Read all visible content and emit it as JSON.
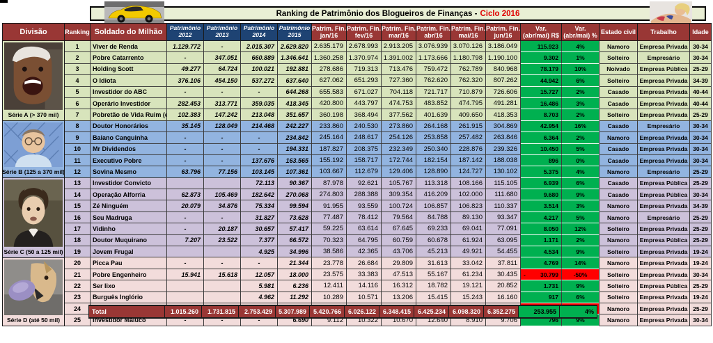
{
  "banner": {
    "title_prefix": "Ranking de Patrimônio dos Blogueiros de Finanças -",
    "title_highlight": "Ciclo 2016"
  },
  "colors": {
    "header_red": "#993735",
    "header_blue": "#1e4373",
    "serie_a": "#d8e4bc",
    "serie_b": "#92b4e0",
    "serie_c": "#ccc1da",
    "serie_d": "#f2dcdb",
    "var_positive": "#00b050",
    "var_negative": "#ff0000",
    "banner_bg": "#e9efd5",
    "highlight_text": "#e00000"
  },
  "header": {
    "divisao": "Divisão",
    "ranking": "Ranking",
    "soldado": "Soldado do Milhão",
    "patrimonio_label": "Patrimônio",
    "patrimonio_years": [
      "2012",
      "2013",
      "2014",
      "2015"
    ],
    "patrim_fin_label": "Patrim. Fin.",
    "months": [
      "jan/16",
      "fev/16",
      "mar/16",
      "abr/16",
      "mai/16",
      "jun/16"
    ],
    "var_rs": [
      "Var.",
      "(abr/mai) R$"
    ],
    "var_pct": [
      "Var.",
      "(abr/mai) %"
    ],
    "estado": "Estado civil",
    "trabalho": "Trabalho",
    "idade": "Idade"
  },
  "series": [
    {
      "id": "A",
      "label": "Série A (> 370 mil)",
      "rows": 7
    },
    {
      "id": "B",
      "label": "Série B (125 a 370 mil)",
      "rows": 5
    },
    {
      "id": "C",
      "label": "Série C (50 a 125 mil)",
      "rows": 7
    },
    {
      "id": "D",
      "label": "Série D (até 50 mil)",
      "rows": 6
    }
  ],
  "rows": [
    {
      "rank": "1",
      "name": "Viver de Renda",
      "serie": "A",
      "hist": [
        "1.129.772",
        "-",
        "2.015.307",
        "2.629.820"
      ],
      "months": [
        "2.635.179",
        "2.678.993",
        "2.913.205",
        "3.076.939",
        "3.070.126",
        "3.186.049"
      ],
      "var_rs": "115.923",
      "var_pct": "4%",
      "estado": "Namoro",
      "trabalho": "Empresa Privada",
      "idade": "30-34"
    },
    {
      "rank": "2",
      "name": "Pobre Catarrento",
      "serie": "A",
      "hist": [
        "-",
        "347.051",
        "660.889",
        "1.346.641"
      ],
      "months": [
        "1.360.258",
        "1.370.974",
        "1.391.002",
        "1.173.666",
        "1.180.798",
        "1.190.100"
      ],
      "var_rs": "9.302",
      "var_pct": "1%",
      "estado": "Solteiro",
      "trabalho": "Empresário",
      "idade": "30-34"
    },
    {
      "rank": "3",
      "name": "Holding Scott",
      "serie": "A",
      "hist": [
        "49.277",
        "64.724",
        "100.021",
        "192.881"
      ],
      "months": [
        "278.686",
        "719.313",
        "713.476",
        "759.472",
        "762.789",
        "840.968"
      ],
      "var_rs": "78.179",
      "var_pct": "10%",
      "estado": "Noivado",
      "trabalho": "Empresa Pública",
      "idade": "25-29"
    },
    {
      "rank": "4",
      "name": "O Idiota",
      "serie": "A",
      "hist": [
        "376.106",
        "454.150",
        "537.272",
        "637.640"
      ],
      "months": [
        "627.062",
        "651.293",
        "727.360",
        "762.620",
        "762.320",
        "807.262"
      ],
      "var_rs": "44.942",
      "var_pct": "6%",
      "estado": "Solteiro",
      "trabalho": "Empresa Privada",
      "idade": "34-39"
    },
    {
      "rank": "5",
      "name": "Investidor do ABC",
      "serie": "A",
      "hist": [
        "-",
        "-",
        "-",
        "644.268"
      ],
      "months": [
        "655.583",
        "671.027",
        "704.118",
        "721.717",
        "710.879",
        "726.606"
      ],
      "var_rs": "15.727",
      "var_pct": "2%",
      "estado": "Casado",
      "trabalho": "Empresa Privada",
      "idade": "40-44"
    },
    {
      "rank": "6",
      "name": "Operário Investidor",
      "serie": "A",
      "hist": [
        "282.453",
        "313.771",
        "359.035",
        "418.345"
      ],
      "months": [
        "420.800",
        "443.797",
        "474.753",
        "483.852",
        "474.795",
        "491.281"
      ],
      "var_rs": "16.486",
      "var_pct": "3%",
      "estado": "Casado",
      "trabalho": "Empresa Privada",
      "idade": "40-44"
    },
    {
      "rank": "7",
      "name": "Pobretão de Vida Ruim (eu)",
      "serie": "A",
      "hist": [
        "102.383",
        "147.242",
        "213.048",
        "351.657"
      ],
      "months": [
        "360.198",
        "368.494",
        "377.562",
        "401.639",
        "409.650",
        "418.353"
      ],
      "var_rs": "8.703",
      "var_pct": "2%",
      "estado": "Solteiro",
      "trabalho": "Empresa Privada",
      "idade": "25-29"
    },
    {
      "rank": "8",
      "name": "Doutor Honorários",
      "serie": "B",
      "hist": [
        "35.145",
        "128.049",
        "214.468",
        "242.227"
      ],
      "months": [
        "233.860",
        "240.530",
        "273.860",
        "264.168",
        "261.915",
        "304.869"
      ],
      "var_rs": "42.954",
      "var_pct": "16%",
      "estado": "Casado",
      "trabalho": "Empresário",
      "idade": "30-34"
    },
    {
      "rank": "9",
      "name": "Baiano Canguinha",
      "serie": "B",
      "hist": [
        "-",
        "-",
        "-",
        "234.842"
      ],
      "months": [
        "245.164",
        "248.617",
        "254.126",
        "253.858",
        "257.482",
        "263.846"
      ],
      "var_rs": "6.364",
      "var_pct": "2%",
      "estado": "Namoro",
      "trabalho": "Empresa Privada",
      "idade": "30-34"
    },
    {
      "rank": "10",
      "name": "Mr Dividendos",
      "serie": "B",
      "hist": [
        "-",
        "-",
        "-",
        "194.331"
      ],
      "months": [
        "187.827",
        "208.375",
        "232.349",
        "250.340",
        "228.876",
        "239.326"
      ],
      "var_rs": "10.450",
      "var_pct": "5%",
      "estado": "Casado",
      "trabalho": "Empresa Privada",
      "idade": "30-34"
    },
    {
      "rank": "11",
      "name": "Executivo Pobre",
      "serie": "B",
      "hist": [
        "-",
        "-",
        "137.676",
        "163.565"
      ],
      "months": [
        "155.192",
        "158.717",
        "172.744",
        "182.154",
        "187.142",
        "188.038"
      ],
      "var_rs": "896",
      "var_pct": "0%",
      "estado": "Casado",
      "trabalho": "Empresa Privada",
      "idade": "30-34"
    },
    {
      "rank": "12",
      "name": "Sovina Mesmo",
      "serie": "B",
      "hist": [
        "63.796",
        "77.156",
        "103.145",
        "107.361"
      ],
      "months": [
        "103.667",
        "112.679",
        "129.406",
        "128.890",
        "124.727",
        "130.102"
      ],
      "var_rs": "5.375",
      "var_pct": "4%",
      "estado": "Namoro",
      "trabalho": "Empresário",
      "idade": "25-29"
    },
    {
      "rank": "13",
      "name": "Investidor Convicto",
      "serie": "C",
      "hist": [
        "",
        "",
        "72.113",
        "90.367"
      ],
      "months": [
        "87.978",
        "92.621",
        "105.767",
        "113.318",
        "108.166",
        "115.105"
      ],
      "var_rs": "6.939",
      "var_pct": "6%",
      "estado": "Casado",
      "trabalho": "Empresa Pública",
      "idade": "25-29"
    },
    {
      "rank": "14",
      "name": "Operação Alforria",
      "serie": "C",
      "hist": [
        "62.873",
        "105.469",
        "182.642",
        "270.068"
      ],
      "months": [
        "274.803",
        "288.388",
        "309.354",
        "416.209",
        "102.000",
        "111.680"
      ],
      "var_rs": "9.680",
      "var_pct": "9%",
      "estado": "Casado",
      "trabalho": "Empresa Pública",
      "idade": "30-34"
    },
    {
      "rank": "15",
      "name": "Zé Ninguém",
      "serie": "C",
      "hist": [
        "20.079",
        "34.876",
        "75.334",
        "99.594"
      ],
      "months": [
        "91.955",
        "93.559",
        "100.724",
        "106.857",
        "106.823",
        "110.337"
      ],
      "var_rs": "3.514",
      "var_pct": "3%",
      "estado": "Namoro",
      "trabalho": "Empresa Privada",
      "idade": "34-39"
    },
    {
      "rank": "16",
      "name": "Seu Madruga",
      "serie": "C",
      "hist": [
        "-",
        "-",
        "31.827",
        "73.628"
      ],
      "months": [
        "77.487",
        "78.412",
        "79.564",
        "84.788",
        "89.130",
        "93.347"
      ],
      "var_rs": "4.217",
      "var_pct": "5%",
      "estado": "Namoro",
      "trabalho": "Empresário",
      "idade": "25-29"
    },
    {
      "rank": "17",
      "name": "Vidinho",
      "serie": "C",
      "hist": [
        "-",
        "20.187",
        "30.657",
        "57.417"
      ],
      "months": [
        "59.225",
        "63.614",
        "67.645",
        "69.233",
        "69.041",
        "77.091"
      ],
      "var_rs": "8.050",
      "var_pct": "12%",
      "estado": "Solteiro",
      "trabalho": "Empresa Privada",
      "idade": "25-29"
    },
    {
      "rank": "18",
      "name": "Doutor Muquirano",
      "serie": "C",
      "hist": [
        "7.207",
        "23.522",
        "7.377",
        "66.572"
      ],
      "months": [
        "70.323",
        "64.795",
        "60.759",
        "60.678",
        "61.924",
        "63.095"
      ],
      "var_rs": "1.171",
      "var_pct": "2%",
      "estado": "Namoro",
      "trabalho": "Empresa Pública",
      "idade": "25-29"
    },
    {
      "rank": "19",
      "name": "Jovem Frugal",
      "serie": "C",
      "hist": [
        "",
        "",
        "4.925",
        "34.996"
      ],
      "months": [
        "38.586",
        "42.365",
        "43.706",
        "45.213",
        "49.921",
        "54.455"
      ],
      "var_rs": "4.534",
      "var_pct": "9%",
      "estado": "Solteiro",
      "trabalho": "Empresa Privada",
      "idade": "19-24"
    },
    {
      "rank": "20",
      "name": "Picca Pau",
      "serie": "D",
      "hist": [
        "-",
        "-",
        "-",
        "21.344"
      ],
      "months": [
        "23.778",
        "26.684",
        "29.809",
        "31.613",
        "33.042",
        "37.811"
      ],
      "var_rs": "4.769",
      "var_pct": "14%",
      "estado": "Namoro",
      "trabalho": "Empresa Privada",
      "idade": "19-24"
    },
    {
      "rank": "21",
      "name": "Pobre Engenheiro",
      "serie": "D",
      "hist": [
        "15.941",
        "15.618",
        "12.057",
        "18.000"
      ],
      "months": [
        "23.575",
        "33.383",
        "47.513",
        "55.167",
        "61.234",
        "30.435"
      ],
      "var_rs": "- 30.799",
      "var_pct": "-50%",
      "estado": "Solteiro",
      "trabalho": "Empresa Privada",
      "idade": "30-34"
    },
    {
      "rank": "22",
      "name": "Ser lixo",
      "serie": "D",
      "hist": [
        "",
        "",
        "5.981",
        "6.236"
      ],
      "months": [
        "12.411",
        "14.116",
        "16.312",
        "18.782",
        "19.121",
        "20.852"
      ],
      "var_rs": "1.731",
      "var_pct": "9%",
      "estado": "Solteiro",
      "trabalho": "Empresa Pública",
      "idade": "25-29"
    },
    {
      "rank": "23",
      "name": "Burguês Inglório",
      "serie": "D",
      "hist": [
        "",
        "",
        "4.962",
        "11.292"
      ],
      "months": [
        "10.289",
        "10.571",
        "13.206",
        "15.415",
        "15.243",
        "16.160"
      ],
      "var_rs": "917",
      "var_pct": "6%",
      "estado": "Solteiro",
      "trabalho": "Empresa Privada",
      "idade": "19-24"
    },
    {
      "rank": "24",
      "name": "Mestre dos Centavos",
      "serie": "D",
      "hist": [
        "-",
        "-",
        "-",
        "18.027"
      ],
      "months": [
        "12.947",
        "13.476",
        "12.630",
        "12.945",
        "12.392",
        "11.450"
      ],
      "var_rs": "- 942",
      "var_pct": "-8%",
      "estado": "Namoro",
      "trabalho": "Empresa Privada",
      "idade": "25-29"
    },
    {
      "rank": "25",
      "name": "Investidor Maluco",
      "serie": "D",
      "hist": [
        "-",
        "-",
        "-",
        "6.690"
      ],
      "months": [
        "9.112",
        "10.322",
        "10.670",
        "12.640",
        "8.910",
        "9.706"
      ],
      "var_rs": "796",
      "var_pct": "9%",
      "estado": "Namoro",
      "trabalho": "Empresa Privada",
      "idade": "30-34"
    }
  ],
  "total": {
    "label": "Total",
    "hist": [
      "1.015.260",
      "1.731.815",
      "2.753.429",
      "5.307.989"
    ],
    "months": [
      "5.420.766",
      "6.026.122",
      "6.348.415",
      "6.425.234",
      "6.098.320",
      "6.352.275"
    ],
    "var_rs": "253.955",
    "var_pct": "4%"
  }
}
